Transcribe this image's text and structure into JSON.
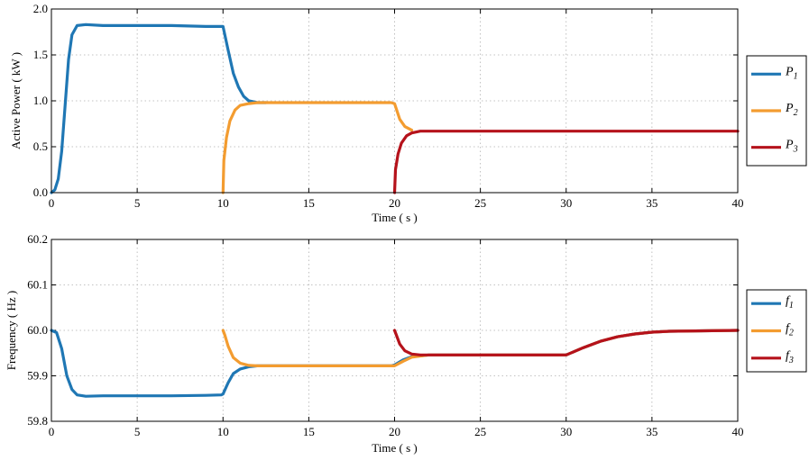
{
  "chart_data": [
    {
      "type": "line",
      "xlabel": "Time ( s )",
      "ylabel": "Active  Power ( kW )",
      "xlim": [
        0,
        40
      ],
      "ylim": [
        0,
        2.0
      ],
      "xticks": [
        "0",
        "5",
        "10",
        "15",
        "20",
        "25",
        "30",
        "35",
        "40"
      ],
      "yticks": [
        "0.0",
        "0.5",
        "1.0",
        "1.5",
        "2.0"
      ],
      "grid": true,
      "legend_position": "right",
      "series": [
        {
          "name": "P1",
          "base": "P",
          "sub": "1",
          "color": "#1f77b4",
          "x": [
            0,
            0.2,
            0.4,
            0.6,
            0.8,
            1.0,
            1.2,
            1.5,
            2,
            3,
            5,
            7,
            9,
            9.9,
            10.0,
            10.3,
            10.6,
            10.9,
            11.2,
            11.5,
            12,
            12.5
          ],
          "y": [
            0,
            0.03,
            0.15,
            0.45,
            0.95,
            1.45,
            1.72,
            1.82,
            1.83,
            1.82,
            1.82,
            1.82,
            1.81,
            1.81,
            1.81,
            1.55,
            1.3,
            1.15,
            1.05,
            1.0,
            0.98,
            0.98
          ]
        },
        {
          "name": "P2",
          "base": "P",
          "sub": "2",
          "color": "#f39c30",
          "x": [
            10.0,
            10.05,
            10.2,
            10.4,
            10.7,
            11.0,
            11.5,
            12,
            14,
            16,
            18,
            19.8,
            20.0,
            20.3,
            20.6,
            21.0
          ],
          "y": [
            0,
            0.35,
            0.6,
            0.78,
            0.9,
            0.95,
            0.97,
            0.98,
            0.98,
            0.98,
            0.98,
            0.98,
            0.97,
            0.8,
            0.72,
            0.68
          ]
        },
        {
          "name": "P3",
          "base": "P",
          "sub": "3",
          "color": "#b5121b",
          "x": [
            20.0,
            20.05,
            20.2,
            20.4,
            20.7,
            21.0,
            21.5,
            22,
            25,
            30,
            35,
            40
          ],
          "y": [
            0,
            0.25,
            0.42,
            0.54,
            0.62,
            0.65,
            0.67,
            0.67,
            0.67,
            0.67,
            0.67,
            0.67
          ]
        }
      ]
    },
    {
      "type": "line",
      "xlabel": "Time ( s )",
      "ylabel": "Frequency ( Hz )",
      "xlim": [
        0,
        40
      ],
      "ylim": [
        59.8,
        60.2
      ],
      "xticks": [
        "0",
        "5",
        "10",
        "15",
        "20",
        "25",
        "30",
        "35",
        "40"
      ],
      "yticks": [
        "59.8",
        "59.9",
        "60.0",
        "60.1",
        "60.2"
      ],
      "grid": true,
      "legend_position": "right",
      "series": [
        {
          "name": "f1",
          "base": "f",
          "sub": "1",
          "color": "#1f77b4",
          "x": [
            0,
            0.3,
            0.6,
            0.9,
            1.2,
            1.5,
            2,
            3,
            5,
            7,
            9,
            9.9,
            10.0,
            10.3,
            10.6,
            11.0,
            11.5,
            12,
            14,
            16,
            18,
            19.8,
            20.0,
            20.5,
            21.0,
            22,
            25,
            28,
            30,
            31,
            32,
            33,
            34,
            35,
            36,
            38,
            40
          ],
          "y": [
            60.0,
            59.995,
            59.96,
            59.9,
            59.87,
            59.858,
            59.855,
            59.856,
            59.856,
            59.856,
            59.857,
            59.858,
            59.86,
            59.885,
            59.905,
            59.915,
            59.92,
            59.922,
            59.922,
            59.922,
            59.922,
            59.922,
            59.924,
            59.935,
            59.942,
            59.946,
            59.946,
            59.946,
            59.946,
            59.962,
            59.976,
            59.986,
            59.992,
            59.996,
            59.998,
            59.999,
            60.0
          ]
        },
        {
          "name": "f2",
          "base": "f",
          "sub": "2",
          "color": "#f39c30",
          "x": [
            10.0,
            10.1,
            10.3,
            10.6,
            11.0,
            11.5,
            12,
            14,
            16,
            18,
            19.8,
            20.0,
            20.5,
            21.0,
            22,
            25,
            28,
            30,
            31,
            32,
            33,
            34,
            35,
            36,
            38,
            40
          ],
          "y": [
            60.0,
            59.99,
            59.965,
            59.94,
            59.928,
            59.923,
            59.922,
            59.922,
            59.922,
            59.922,
            59.922,
            59.922,
            59.932,
            59.941,
            59.946,
            59.946,
            59.946,
            59.946,
            59.962,
            59.976,
            59.986,
            59.992,
            59.996,
            59.998,
            59.999,
            60.0
          ]
        },
        {
          "name": "f3",
          "base": "f",
          "sub": "3",
          "color": "#b5121b",
          "x": [
            20.0,
            20.1,
            20.3,
            20.6,
            21.0,
            21.5,
            22,
            25,
            28,
            30,
            31,
            32,
            33,
            34,
            35,
            36,
            38,
            40
          ],
          "y": [
            60.0,
            59.99,
            59.97,
            59.955,
            59.948,
            59.946,
            59.946,
            59.946,
            59.946,
            59.946,
            59.962,
            59.976,
            59.986,
            59.992,
            59.996,
            59.998,
            59.999,
            60.0
          ]
        }
      ]
    }
  ]
}
